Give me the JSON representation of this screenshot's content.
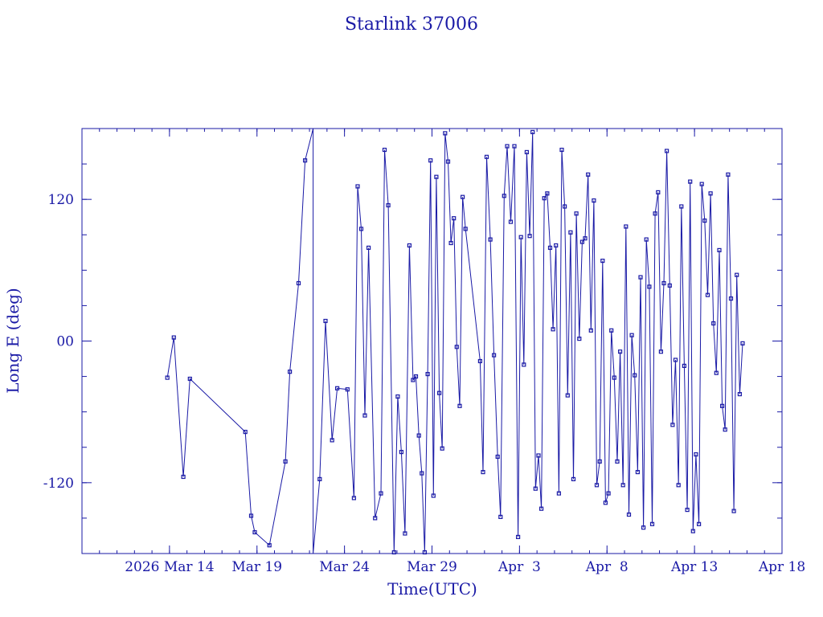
{
  "chart_data": {
    "type": "line",
    "title": "Starlink 37006",
    "xlabel": "Time(UTC)",
    "ylabel": "Long E (deg)",
    "xlim": [
      "2026-03-09",
      "2026-04-18"
    ],
    "ylim": [
      -180,
      180
    ],
    "grid": false,
    "legend": "none",
    "x_ticks": [
      {
        "date": "2026-03-14",
        "label": "2026 Mar 14"
      },
      {
        "date": "2026-03-19",
        "label": "Mar 19"
      },
      {
        "date": "2026-03-24",
        "label": "Mar 24"
      },
      {
        "date": "2026-03-29",
        "label": "Mar 29"
      },
      {
        "date": "2026-04-03",
        "label": "Apr  3"
      },
      {
        "date": "2026-04-08",
        "label": "Apr  8"
      },
      {
        "date": "2026-04-13",
        "label": "Apr 13"
      },
      {
        "date": "2026-04-18",
        "label": "Apr 18"
      }
    ],
    "y_ticks": [
      {
        "value": 120,
        "label": "120"
      },
      {
        "value": 0,
        "label": "00"
      },
      {
        "value": -120,
        "label": "-120"
      }
    ],
    "points": [
      [
        "2026-03-13T21:00",
        -31
      ],
      [
        "2026-03-14T06:00",
        3
      ],
      [
        "2026-03-14T19:00",
        -115
      ],
      [
        "2026-03-15T04:00",
        -32
      ],
      [
        "2026-03-18T08:00",
        -77
      ],
      [
        "2026-03-18T16:00",
        -148
      ],
      [
        "2026-03-18T21:00",
        -162
      ],
      [
        "2026-03-19T17:00",
        -173
      ],
      [
        "2026-03-20T15:00",
        -102
      ],
      [
        "2026-03-20T21:00",
        -26
      ],
      [
        "2026-03-21T09:00",
        49
      ],
      [
        "2026-03-21T18:00",
        153
      ],
      [
        "2026-03-22T05:00",
        180
      ],
      [
        "2026-03-22T05:00",
        -180
      ],
      [
        "2026-03-22T14:00",
        -117
      ],
      [
        "2026-03-22T22:00",
        17
      ],
      [
        "2026-03-23T07:00",
        -84
      ],
      [
        "2026-03-23T14:00",
        -40
      ],
      [
        "2026-03-24T04:00",
        -41
      ],
      [
        "2026-03-24T13:00",
        -133
      ],
      [
        "2026-03-24T18:00",
        131
      ],
      [
        "2026-03-24T23:00",
        95
      ],
      [
        "2026-03-25T04:00",
        -63
      ],
      [
        "2026-03-25T09:00",
        79
      ],
      [
        "2026-03-25T18:00",
        -150
      ],
      [
        "2026-03-26T02:00",
        -129
      ],
      [
        "2026-03-26T07:00",
        162
      ],
      [
        "2026-03-26T12:00",
        115
      ],
      [
        "2026-03-26T20:00",
        -179
      ],
      [
        "2026-03-27T01:00",
        -47
      ],
      [
        "2026-03-27T06:00",
        -94
      ],
      [
        "2026-03-27T11:00",
        -163
      ],
      [
        "2026-03-27T17:00",
        81
      ],
      [
        "2026-03-27T22:00",
        -33
      ],
      [
        "2026-03-28T02:00",
        -30
      ],
      [
        "2026-03-28T06:00",
        -80
      ],
      [
        "2026-03-28T10:00",
        -112
      ],
      [
        "2026-03-28T14:00",
        -179
      ],
      [
        "2026-03-28T18:00",
        -28
      ],
      [
        "2026-03-28T22:00",
        153
      ],
      [
        "2026-03-29T02:00",
        -131
      ],
      [
        "2026-03-29T06:00",
        139
      ],
      [
        "2026-03-29T10:00",
        -44
      ],
      [
        "2026-03-29T14:00",
        -91
      ],
      [
        "2026-03-29T18:00",
        176
      ],
      [
        "2026-03-29T22:00",
        152
      ],
      [
        "2026-03-30T02:00",
        83
      ],
      [
        "2026-03-30T06:00",
        104
      ],
      [
        "2026-03-30T10:00",
        -5
      ],
      [
        "2026-03-30T14:00",
        -55
      ],
      [
        "2026-03-30T18:00",
        122
      ],
      [
        "2026-03-30T22:00",
        95
      ],
      [
        "2026-03-31T18:00",
        -17
      ],
      [
        "2026-03-31T22:00",
        -111
      ],
      [
        "2026-04-01T03:00",
        156
      ],
      [
        "2026-04-01T08:00",
        86
      ],
      [
        "2026-04-01T13:00",
        -12
      ],
      [
        "2026-04-01T18:00",
        -98
      ],
      [
        "2026-04-01T22:00",
        -149
      ],
      [
        "2026-04-02T03:00",
        123
      ],
      [
        "2026-04-02T07:00",
        165
      ],
      [
        "2026-04-02T12:00",
        101
      ],
      [
        "2026-04-02T17:00",
        165
      ],
      [
        "2026-04-02T22:00",
        -166
      ],
      [
        "2026-04-03T02:00",
        88
      ],
      [
        "2026-04-03T06:00",
        -20
      ],
      [
        "2026-04-03T10:00",
        160
      ],
      [
        "2026-04-03T14:00",
        89
      ],
      [
        "2026-04-03T18:00",
        177
      ],
      [
        "2026-04-03T22:00",
        -125
      ],
      [
        "2026-04-04T02:00",
        -97
      ],
      [
        "2026-04-04T06:00",
        -142
      ],
      [
        "2026-04-04T10:00",
        121
      ],
      [
        "2026-04-04T14:00",
        125
      ],
      [
        "2026-04-04T18:00",
        79
      ],
      [
        "2026-04-04T22:00",
        10
      ],
      [
        "2026-04-05T02:00",
        81
      ],
      [
        "2026-04-05T06:00",
        -129
      ],
      [
        "2026-04-05T10:00",
        162
      ],
      [
        "2026-04-05T14:00",
        114
      ],
      [
        "2026-04-05T18:00",
        -46
      ],
      [
        "2026-04-05T22:00",
        92
      ],
      [
        "2026-04-06T02:00",
        -117
      ],
      [
        "2026-04-06T06:00",
        108
      ],
      [
        "2026-04-06T10:00",
        2
      ],
      [
        "2026-04-06T14:00",
        84
      ],
      [
        "2026-04-06T18:00",
        87
      ],
      [
        "2026-04-06T22:00",
        141
      ],
      [
        "2026-04-07T02:00",
        9
      ],
      [
        "2026-04-07T06:00",
        119
      ],
      [
        "2026-04-07T10:00",
        -122
      ],
      [
        "2026-04-07T14:00",
        -102
      ],
      [
        "2026-04-07T18:00",
        68
      ],
      [
        "2026-04-07T22:00",
        -137
      ],
      [
        "2026-04-08T02:00",
        -129
      ],
      [
        "2026-04-08T06:00",
        9
      ],
      [
        "2026-04-08T10:00",
        -31
      ],
      [
        "2026-04-08T14:00",
        -102
      ],
      [
        "2026-04-08T18:00",
        -9
      ],
      [
        "2026-04-08T22:00",
        -122
      ],
      [
        "2026-04-09T02:00",
        97
      ],
      [
        "2026-04-09T06:00",
        -147
      ],
      [
        "2026-04-09T10:00",
        5
      ],
      [
        "2026-04-09T14:00",
        -29
      ],
      [
        "2026-04-09T18:00",
        -111
      ],
      [
        "2026-04-09T22:00",
        54
      ],
      [
        "2026-04-10T02:00",
        -158
      ],
      [
        "2026-04-10T06:00",
        86
      ],
      [
        "2026-04-10T10:00",
        46
      ],
      [
        "2026-04-10T14:00",
        -155
      ],
      [
        "2026-04-10T18:00",
        108
      ],
      [
        "2026-04-10T22:00",
        126
      ],
      [
        "2026-04-11T02:00",
        -9
      ],
      [
        "2026-04-11T06:00",
        49
      ],
      [
        "2026-04-11T10:00",
        161
      ],
      [
        "2026-04-11T14:00",
        47
      ],
      [
        "2026-04-11T18:00",
        -71
      ],
      [
        "2026-04-11T22:00",
        -16
      ],
      [
        "2026-04-12T02:00",
        -122
      ],
      [
        "2026-04-12T06:00",
        114
      ],
      [
        "2026-04-12T10:00",
        -21
      ],
      [
        "2026-04-12T14:00",
        -143
      ],
      [
        "2026-04-12T18:00",
        135
      ],
      [
        "2026-04-12T22:00",
        -161
      ],
      [
        "2026-04-13T02:00",
        -96
      ],
      [
        "2026-04-13T06:00",
        -155
      ],
      [
        "2026-04-13T10:00",
        133
      ],
      [
        "2026-04-13T14:00",
        102
      ],
      [
        "2026-04-13T18:00",
        39
      ],
      [
        "2026-04-13T22:00",
        125
      ],
      [
        "2026-04-14T02:00",
        15
      ],
      [
        "2026-04-14T06:00",
        -27
      ],
      [
        "2026-04-14T10:00",
        77
      ],
      [
        "2026-04-14T14:00",
        -55
      ],
      [
        "2026-04-14T18:00",
        -75
      ],
      [
        "2026-04-14T22:00",
        141
      ],
      [
        "2026-04-15T02:00",
        36
      ],
      [
        "2026-04-15T06:00",
        -144
      ],
      [
        "2026-04-15T10:00",
        56
      ],
      [
        "2026-04-15T14:00",
        -45
      ],
      [
        "2026-04-15T18:00",
        -2
      ]
    ]
  }
}
